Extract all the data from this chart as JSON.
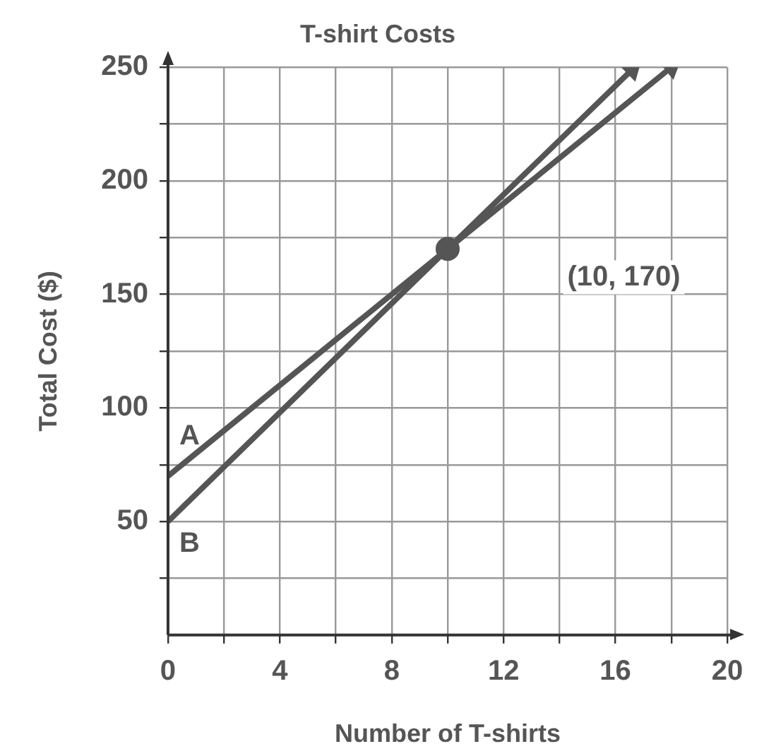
{
  "chart_data": {
    "type": "line",
    "title": "T-shirt Costs",
    "xlabel": "Number of T-shirts",
    "ylabel": "Total Cost ($)",
    "series": [
      {
        "name": "A",
        "type": "line",
        "marker": "none",
        "color": "#555555",
        "x": [
          0,
          10,
          18
        ],
        "values": [
          70,
          170,
          250
        ]
      },
      {
        "name": "B",
        "type": "line",
        "marker": "none",
        "color": "#555555",
        "x": [
          0,
          10,
          16.6
        ],
        "values": [
          50,
          170,
          249
        ]
      },
      {
        "type": "scatter",
        "marker": "circle",
        "color": "#555555",
        "x": [
          10
        ],
        "values": [
          170
        ]
      }
    ],
    "grid": true,
    "legend": false,
    "xlim": [
      0,
      20
    ],
    "xticks": [
      0,
      {
        "value": 2,
        "label": null
      },
      4,
      {
        "value": 6,
        "label": null
      },
      8,
      {
        "value": 10,
        "label": null
      },
      12,
      {
        "value": 14,
        "label": null
      },
      16,
      {
        "value": 18,
        "label": null
      },
      20
    ],
    "ylim": [
      0,
      250
    ],
    "yticks": [
      {
        "value": 25,
        "label": null
      },
      50,
      {
        "value": 75,
        "label": null
      },
      100,
      {
        "value": 125,
        "label": null
      },
      150,
      {
        "value": 175,
        "label": null
      },
      200,
      {
        "value": 225,
        "label": null
      },
      250
    ],
    "annotations": [
      "(10, 170)"
    ]
  }
}
